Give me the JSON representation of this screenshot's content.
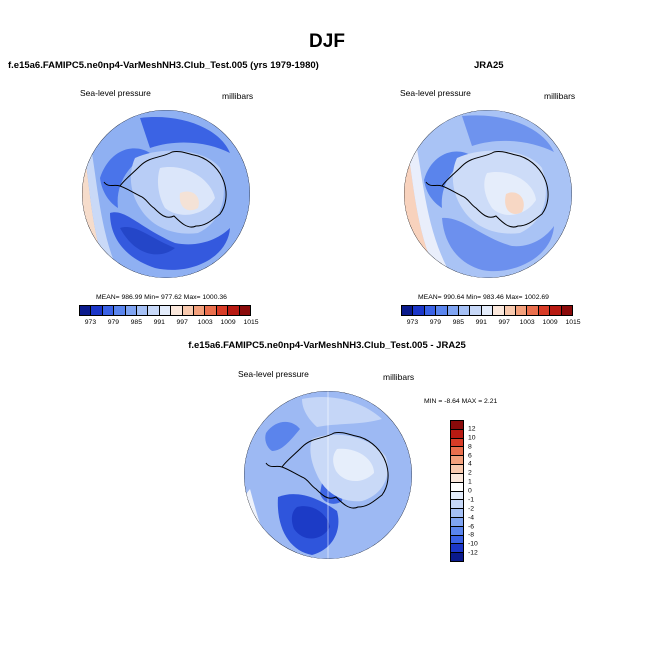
{
  "page": {
    "title": "DJF"
  },
  "panels": [
    {
      "title": "f.e15a6.FAMIPC5.ne0np4-VarMeshNH3.Club_Test.005 (yrs 1979-1980)",
      "left_label": "Sea-level pressure",
      "right_label": "millibars",
      "stats": "MEAN= 986.99  Min= 977.62  Max= 1000.36"
    },
    {
      "title": "JRA25",
      "left_label": "Sea-level pressure",
      "right_label": "millibars",
      "stats": "MEAN= 990.64  Min= 983.46  Max= 1002.69"
    },
    {
      "title": "f.e15a6.FAMIPC5.ne0np4-VarMeshNH3.Club_Test.005 - JRA25",
      "left_label": "Sea-level pressure",
      "right_label": "millibars",
      "stats": "MIN =  -8.64  MAX =   2.21"
    }
  ],
  "colorbar_abs": {
    "ticks": [
      "973",
      "979",
      "985",
      "991",
      "997",
      "1003",
      "1009",
      "1015"
    ],
    "colors": [
      "#0a1a8c",
      "#1b36c8",
      "#3a62e6",
      "#5a85ee",
      "#7fa4f2",
      "#a5c0f5",
      "#c7d8f8",
      "#e3ecfb",
      "#fbe8dc",
      "#f8c9ae",
      "#f3a07c",
      "#ea6f4d",
      "#d83c27",
      "#b81a12",
      "#8a0a0a"
    ]
  },
  "colorbar_diff": {
    "ticks": [
      "12",
      "10",
      "8",
      "6",
      "4",
      "2",
      "1",
      "0",
      "-1",
      "-2",
      "-4",
      "-6",
      "-8",
      "-10",
      "-12"
    ],
    "colors": [
      "#8a0a0a",
      "#b81a12",
      "#d83c27",
      "#ea6f4d",
      "#f3a07c",
      "#f8c9ae",
      "#fbe8dc",
      "#ffffff",
      "#e3ecfb",
      "#c7d8f8",
      "#a5c0f5",
      "#7fa4f2",
      "#5a85ee",
      "#3a62e6",
      "#1b36c8",
      "#0a1a8c"
    ]
  }
}
